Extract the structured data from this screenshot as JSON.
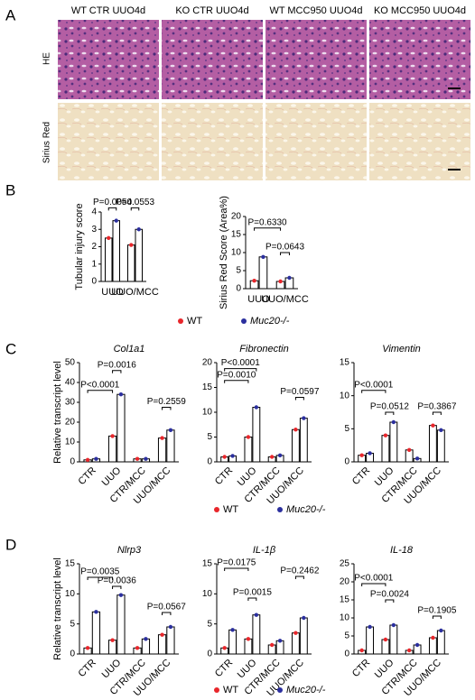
{
  "panels": [
    "A",
    "B",
    "C",
    "D"
  ],
  "images": {
    "columns": [
      "WT CTR UUO4d",
      "KO CTR UUO4d",
      "WT MCC950 UUO4d",
      "KO MCC950 UUO4d"
    ],
    "rows": [
      "HE",
      "Sirius Red"
    ]
  },
  "chart_data": [
    {
      "type": "bar",
      "ylabel": "Tubular injury score",
      "categories": [
        "UUO",
        "UUO/MCC"
      ],
      "series": [
        {
          "name": "WT",
          "color": "#e8262b",
          "values": [
            2.5,
            2.1
          ]
        },
        {
          "name": "Muc20-/-",
          "color": "#2b2f9e",
          "values": [
            3.5,
            3.0
          ]
        }
      ],
      "ylim": [
        0,
        4
      ],
      "yticks": [
        0,
        1,
        2,
        3,
        4
      ],
      "annotations": [
        "P=0.0054",
        "P=0.0553"
      ]
    },
    {
      "type": "bar",
      "ylabel": "Sirius Red Score (Area%)",
      "categories": [
        "UUO",
        "UUO/MCC"
      ],
      "series": [
        {
          "name": "WT",
          "color": "#e8262b",
          "values": [
            2.2,
            2.0
          ]
        },
        {
          "name": "Muc20-/-",
          "color": "#2b2f9e",
          "values": [
            8.8,
            3.0
          ]
        }
      ],
      "ylim": [
        0,
        20
      ],
      "yticks": [
        0,
        5,
        10,
        15,
        20
      ],
      "annotations": [
        "P=0.6330",
        "P=0.0643"
      ]
    },
    {
      "type": "bar",
      "title": "Col1a1",
      "ylabel": "Relative transcript level",
      "categories": [
        "CTR",
        "UUO",
        "CTR/MCC",
        "UUO/MCC"
      ],
      "series": [
        {
          "name": "WT",
          "color": "#e8262b",
          "values": [
            1,
            13,
            1.5,
            12
          ]
        },
        {
          "name": "Muc20-/-",
          "color": "#2b2f9e",
          "values": [
            1.5,
            34,
            1.5,
            16
          ]
        }
      ],
      "ylim": [
        0,
        50
      ],
      "yticks": [
        0,
        10,
        20,
        30,
        40,
        50
      ],
      "annotations": [
        "P<0.0001",
        "P=0.0016",
        "P=0.2559"
      ]
    },
    {
      "type": "bar",
      "title": "Fibronectin",
      "categories": [
        "CTR",
        "UUO",
        "CTR/MCC",
        "UUO/MCC"
      ],
      "series": [
        {
          "name": "WT",
          "color": "#e8262b",
          "values": [
            1,
            5,
            1,
            6.5
          ]
        },
        {
          "name": "Muc20-/-",
          "color": "#2b2f9e",
          "values": [
            1.2,
            11,
            1.3,
            8.8
          ]
        }
      ],
      "ylim": [
        0,
        20
      ],
      "yticks": [
        0,
        5,
        10,
        15,
        20
      ],
      "annotations": [
        "P=0.0010",
        "P<0.0001",
        "P=0.0597"
      ]
    },
    {
      "type": "bar",
      "title": "Vimentin",
      "categories": [
        "CTR",
        "UUO",
        "CTR/MCC",
        "UUO/MCC"
      ],
      "series": [
        {
          "name": "WT",
          "color": "#e8262b",
          "values": [
            1,
            4,
            1.8,
            5.5
          ]
        },
        {
          "name": "Muc20-/-",
          "color": "#2b2f9e",
          "values": [
            1.3,
            6,
            0.5,
            4.8
          ]
        }
      ],
      "ylim": [
        0,
        15
      ],
      "yticks": [
        0,
        5,
        10,
        15
      ],
      "annotations": [
        "P<0.0001",
        "P=0.0512",
        "P=0.3867"
      ]
    },
    {
      "type": "bar",
      "title": "Nlrp3",
      "ylabel": "Relative transcript level",
      "categories": [
        "CTR",
        "UUO",
        "CTR/MCC",
        "UUO/MCC"
      ],
      "series": [
        {
          "name": "WT",
          "color": "#e8262b",
          "values": [
            1,
            2.3,
            1,
            3.2
          ]
        },
        {
          "name": "Muc20-/-",
          "color": "#2b2f9e",
          "values": [
            7,
            9.8,
            2.5,
            4.5
          ]
        }
      ],
      "ylim": [
        0,
        15
      ],
      "yticks": [
        0,
        5,
        10,
        15
      ],
      "annotations": [
        "P=0.0035",
        "P=0.0036",
        "P=0.0567"
      ]
    },
    {
      "type": "bar",
      "title": "IL-1β",
      "categories": [
        "CTR",
        "UUO",
        "CTR/MCC",
        "UUO/MCC"
      ],
      "series": [
        {
          "name": "WT",
          "color": "#e8262b",
          "values": [
            1,
            2.5,
            1.5,
            3.5
          ]
        },
        {
          "name": "Muc20-/-",
          "color": "#2b2f9e",
          "values": [
            4,
            6.5,
            2.2,
            6
          ]
        }
      ],
      "ylim": [
        0,
        15
      ],
      "yticks": [
        0,
        5,
        10,
        15
      ],
      "annotations": [
        "P=0.0175",
        "P=0.0015",
        "P=0.2462"
      ]
    },
    {
      "type": "bar",
      "title": "IL-18",
      "categories": [
        "CTR",
        "UUO",
        "CTR/MCC",
        "UUO/MCC"
      ],
      "series": [
        {
          "name": "WT",
          "color": "#e8262b",
          "values": [
            1,
            4,
            1,
            4.5
          ]
        },
        {
          "name": "Muc20-/-",
          "color": "#2b2f9e",
          "values": [
            7.5,
            8,
            2.5,
            6.5
          ]
        }
      ],
      "ylim": [
        0,
        25
      ],
      "yticks": [
        0,
        5,
        10,
        15,
        20,
        25
      ],
      "annotations": [
        "P<0.0001",
        "P=0.0024",
        "P=0.1905"
      ]
    }
  ]
}
